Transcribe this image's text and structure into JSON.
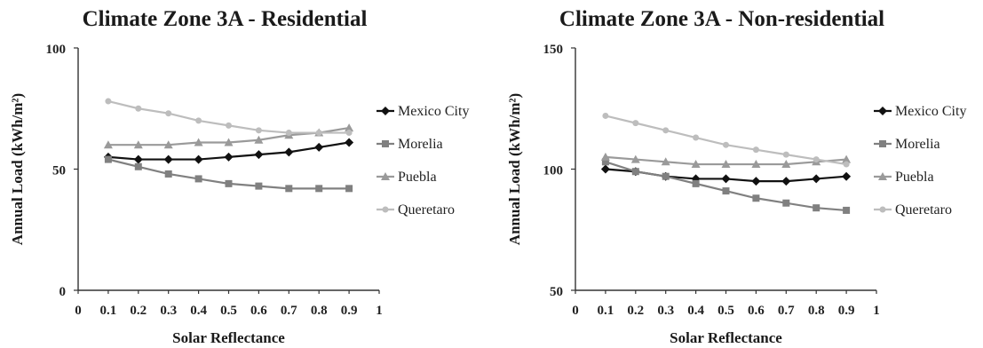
{
  "chart_data": [
    {
      "type": "line",
      "title": "Climate Zone 3A - Residential",
      "xlabel": "Solar Reflectance",
      "ylabel": "Annual Load (kWh/m²)",
      "xlim": [
        0,
        1
      ],
      "ylim": [
        0,
        100
      ],
      "x_ticks": [
        "0",
        "0.1",
        "0.2",
        "0.3",
        "0.4",
        "0.5",
        "0.6",
        "0.7",
        "0.8",
        "0.9",
        "1"
      ],
      "y_ticks": [
        "0",
        "50",
        "100"
      ],
      "x": [
        0.1,
        0.2,
        0.3,
        0.4,
        0.5,
        0.6,
        0.7,
        0.8,
        0.9
      ],
      "legend_position": "right",
      "grid": false,
      "series": [
        {
          "name": "Mexico City",
          "color": "#111111",
          "marker": "diamond",
          "values": [
            55,
            54,
            54,
            54,
            55,
            56,
            57,
            59,
            61
          ]
        },
        {
          "name": "Morelia",
          "color": "#808080",
          "marker": "square",
          "values": [
            54,
            51,
            48,
            46,
            44,
            43,
            42,
            42,
            42
          ]
        },
        {
          "name": "Puebla",
          "color": "#9a9a9a",
          "marker": "triangle",
          "values": [
            60,
            60,
            60,
            61,
            61,
            62,
            64,
            65,
            67
          ]
        },
        {
          "name": "Queretaro",
          "color": "#bdbdbd",
          "marker": "circle",
          "values": [
            78,
            75,
            73,
            70,
            68,
            66,
            65,
            65,
            65
          ]
        }
      ]
    },
    {
      "type": "line",
      "title": "Climate Zone 3A - Non-residential",
      "xlabel": "Solar Reflectance",
      "ylabel": "Annual Load (kWh/m²)",
      "xlim": [
        0,
        1
      ],
      "ylim": [
        50,
        150
      ],
      "x_ticks": [
        "0",
        "0.1",
        "0.2",
        "0.3",
        "0.4",
        "0.5",
        "0.6",
        "0.7",
        "0.8",
        "0.9",
        "1"
      ],
      "y_ticks": [
        "50",
        "100",
        "150"
      ],
      "x": [
        0.1,
        0.2,
        0.3,
        0.4,
        0.5,
        0.6,
        0.7,
        0.8,
        0.9
      ],
      "legend_position": "right",
      "grid": false,
      "series": [
        {
          "name": "Mexico City",
          "color": "#111111",
          "marker": "diamond",
          "values": [
            100,
            99,
            97,
            96,
            96,
            95,
            95,
            96,
            97
          ]
        },
        {
          "name": "Morelia",
          "color": "#808080",
          "marker": "square",
          "values": [
            103,
            99,
            97,
            94,
            91,
            88,
            86,
            84,
            83
          ]
        },
        {
          "name": "Puebla",
          "color": "#9a9a9a",
          "marker": "triangle",
          "values": [
            105,
            104,
            103,
            102,
            102,
            102,
            102,
            103,
            104
          ]
        },
        {
          "name": "Queretaro",
          "color": "#bdbdbd",
          "marker": "circle",
          "values": [
            122,
            119,
            116,
            113,
            110,
            108,
            106,
            104,
            102
          ]
        }
      ]
    }
  ]
}
